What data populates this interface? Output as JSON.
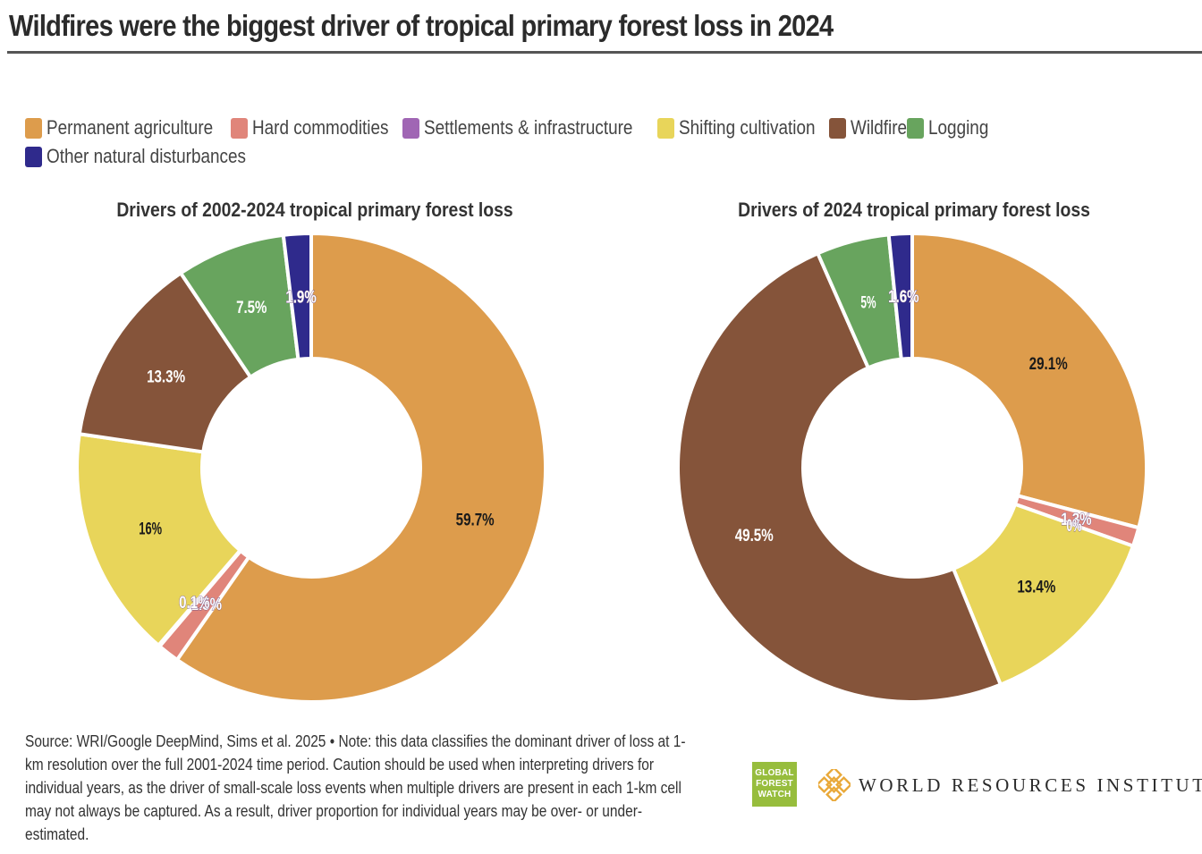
{
  "title": "Wildfires were the biggest driver of tropical primary forest loss in 2024",
  "legend": [
    {
      "label": "Permanent agriculture",
      "color": "#dd9c4c"
    },
    {
      "label": "Hard commodities",
      "color": "#e0857a"
    },
    {
      "label": "Settlements & infrastructure",
      "color": "#a066b4"
    },
    {
      "label": "Shifting cultivation",
      "color": "#e8d55a"
    },
    {
      "label": "Wildfire",
      "color": "#85543a"
    },
    {
      "label": "Logging",
      "color": "#68a45e"
    },
    {
      "label": "Other natural disturbances",
      "color": "#2f2a8c"
    }
  ],
  "chart_data": [
    {
      "type": "pie",
      "title": "Drivers of 2002-2024 tropical primary forest loss",
      "series": [
        {
          "label": "Permanent agriculture",
          "value": 59.7,
          "display": "59.7%",
          "color": "#dd9c4c"
        },
        {
          "label": "Hard commodities",
          "value": 1.5,
          "display": "1.5%",
          "color": "#e0857a"
        },
        {
          "label": "Settlements & infrastructure",
          "value": 0.1,
          "display": "0.1%",
          "color": "#a066b4"
        },
        {
          "label": "Shifting cultivation",
          "value": 16,
          "display": "16%",
          "color": "#e8d55a"
        },
        {
          "label": "Wildfire",
          "value": 13.3,
          "display": "13.3%",
          "color": "#85543a"
        },
        {
          "label": "Logging",
          "value": 7.5,
          "display": "7.5%",
          "color": "#68a45e"
        },
        {
          "label": "Other natural disturbances",
          "value": 1.9,
          "display": "1.9%",
          "color": "#2f2a8c"
        }
      ]
    },
    {
      "type": "pie",
      "title": "Drivers of 2024 tropical primary forest loss",
      "series": [
        {
          "label": "Permanent agriculture",
          "value": 29.1,
          "display": "29.1%",
          "color": "#dd9c4c"
        },
        {
          "label": "Hard commodities",
          "value": 1.3,
          "display": "1.3%",
          "color": "#e0857a"
        },
        {
          "label": "Settlements & infrastructure",
          "value": 0,
          "display": "0%",
          "color": "#a066b4"
        },
        {
          "label": "Shifting cultivation",
          "value": 13.4,
          "display": "13.4%",
          "color": "#e8d55a"
        },
        {
          "label": "Wildfire",
          "value": 49.5,
          "display": "49.5%",
          "color": "#85543a"
        },
        {
          "label": "Logging",
          "value": 5,
          "display": "5%",
          "color": "#68a45e"
        },
        {
          "label": "Other natural disturbances",
          "value": 1.6,
          "display": "1.6%",
          "color": "#2f2a8c"
        }
      ]
    }
  ],
  "source": "Source: WRI/Google DeepMind, Sims et al. 2025 • Note: this data classifies the dominant driver of loss at 1-km resolution over the full 2001-2024 time period. Caution should be used when interpreting drivers for individual years, as the driver of small-scale loss events when multiple drivers are present in each 1-km cell may not always be captured. As a result, driver proportion for individual years may be over- or under-estimated.",
  "logos": {
    "gfw": [
      "GLOBAL",
      "FOREST",
      "WATCH"
    ],
    "wri": "WORLD RESOURCES INSTITUTE"
  }
}
